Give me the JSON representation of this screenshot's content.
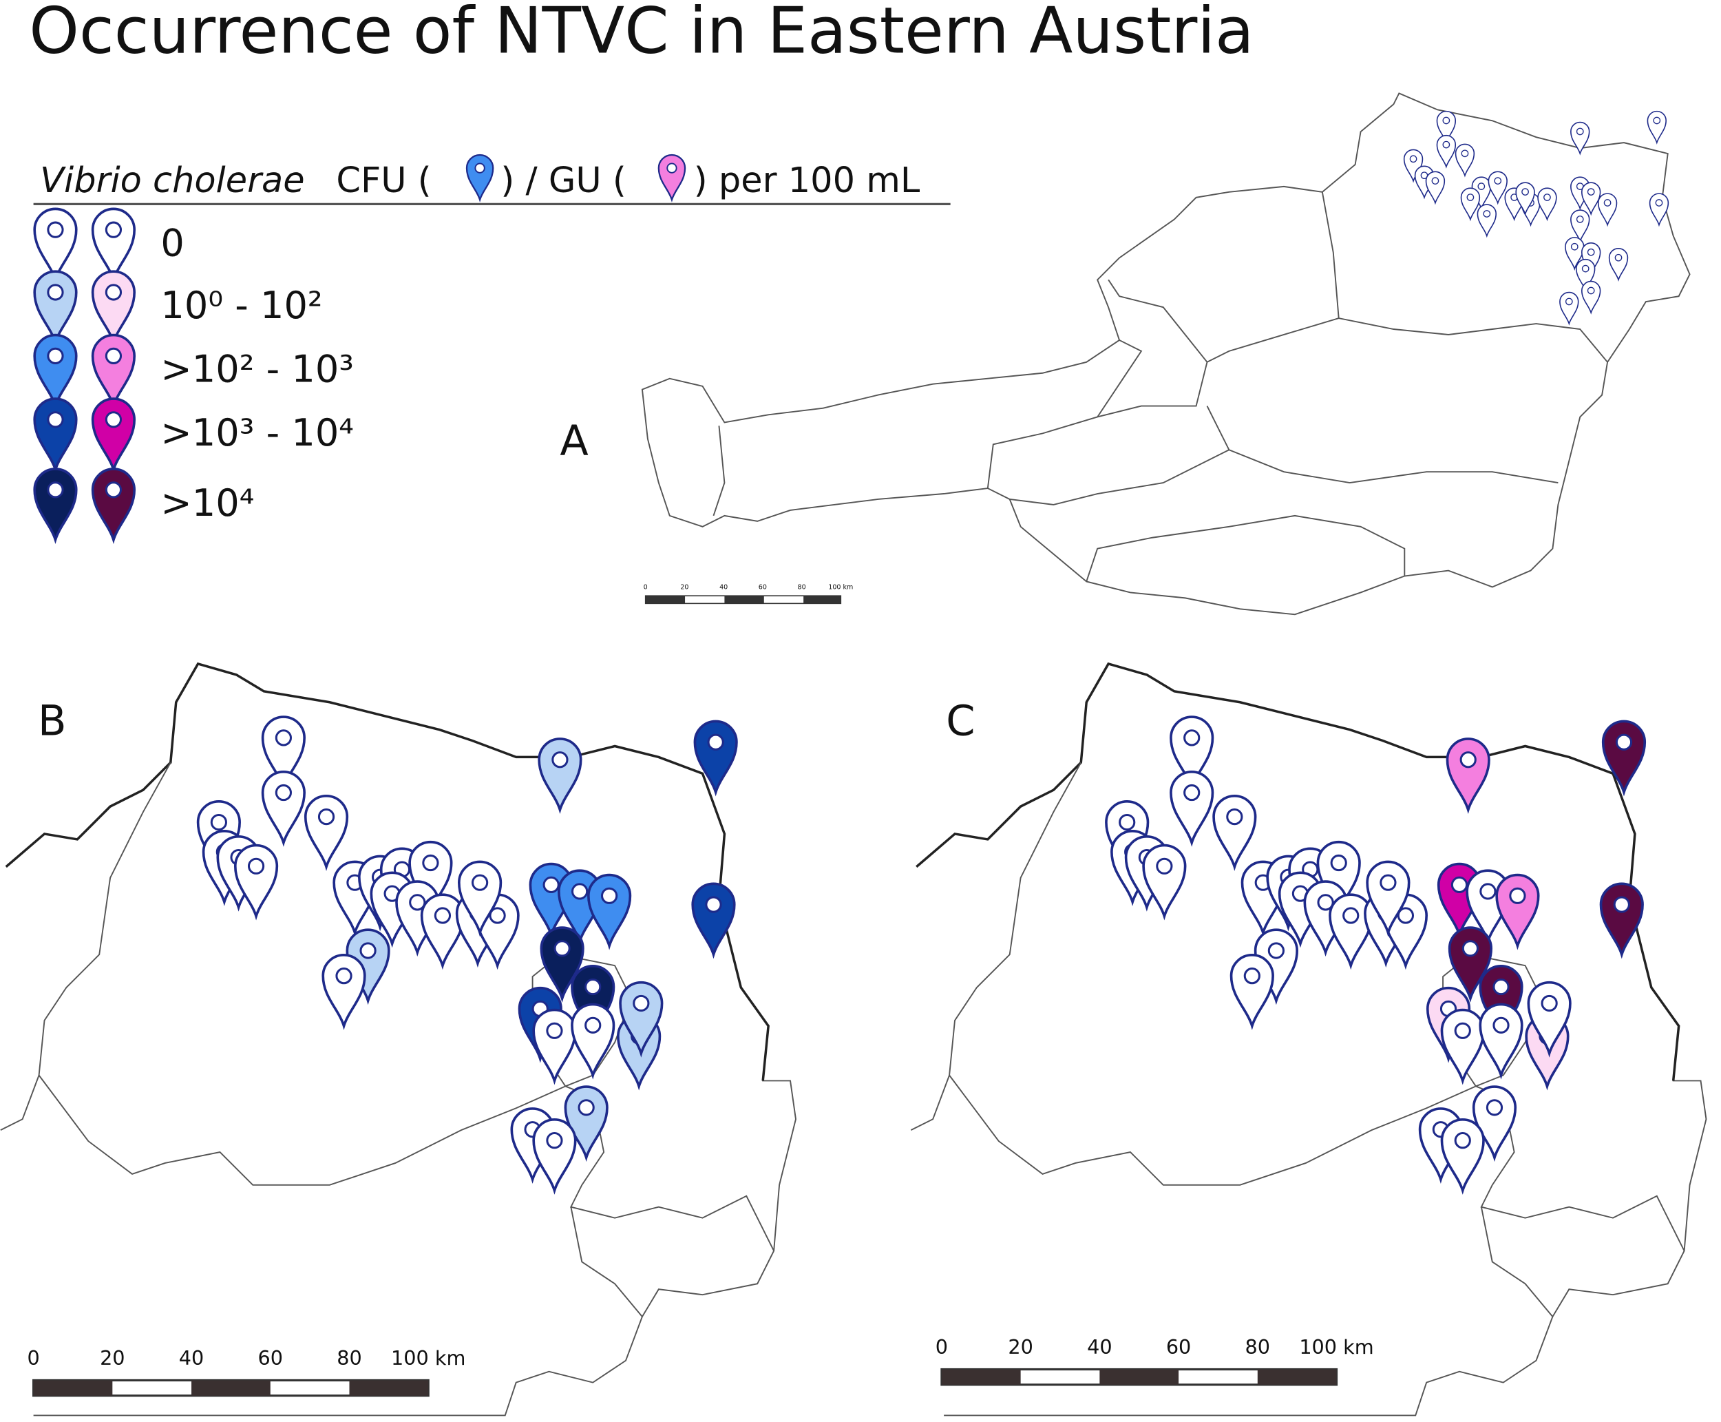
{
  "title": "Occurrence of NTVC in Eastern Austria",
  "legend": {
    "header": {
      "species": "Vibrio cholerae",
      "cfu": "CFU (",
      "gu": ") / GU (",
      "unit": ") per 100 mL"
    },
    "items": [
      {
        "label": "0",
        "cfu_color": "#ffffff",
        "gu_color": "#ffffff"
      },
      {
        "label": "10⁰ - 10²",
        "cfu_color": "#b7d3f4",
        "gu_color": "#fcdaf3"
      },
      {
        "label": ">10² - 10³",
        "cfu_color": "#3f8df0",
        "gu_color": "#f47fdf"
      },
      {
        "label": ">10³ - 10⁴",
        "cfu_color": "#0c42a8",
        "gu_color": "#d000a6"
      },
      {
        "label": ">10⁴",
        "cfu_color": "#0a1f5c",
        "gu_color": "#5a0a42"
      }
    ]
  },
  "panels": {
    "a": "A",
    "b": "B",
    "c": "C"
  },
  "scale_bar": {
    "labels": [
      "0",
      "20",
      "40",
      "60",
      "80",
      "100 km"
    ]
  }
}
